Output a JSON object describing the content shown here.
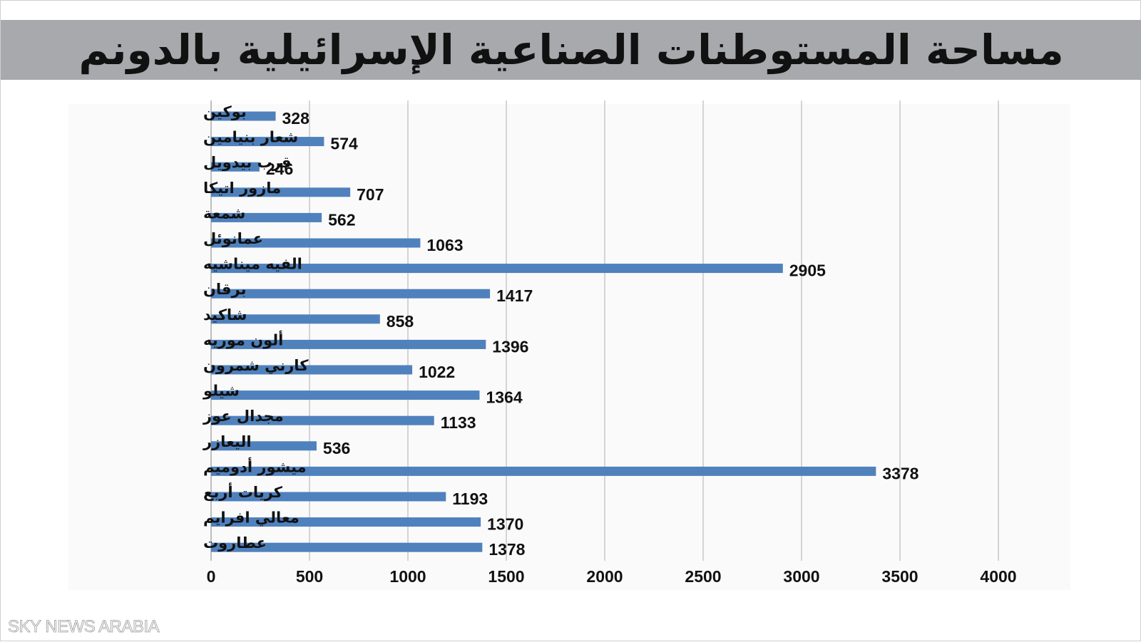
{
  "title": "مساحة المستوطنات الصناعية الإسرائيلية بالدونم",
  "watermark": "SKY NEWS ARABIA",
  "colors": {
    "bar": "#4f81bd",
    "title_bar": "#a7a9ac",
    "grid": "#c8c8c8",
    "text": "#111111"
  },
  "chart_data": {
    "type": "bar",
    "orientation": "horizontal",
    "title": "مساحة المستوطنات الصناعية الإسرائيلية بالدونم",
    "xlabel": "",
    "ylabel": "",
    "xlim": [
      0,
      4000
    ],
    "xticks": [
      0,
      500,
      1000,
      1500,
      2000,
      2500,
      3000,
      3500,
      4000
    ],
    "grid": "vertical",
    "legend": "none",
    "categories": [
      "بوكين",
      "شعار بنيامين",
      "قرب بيدويل",
      "مازور اتيكا",
      "شمعة",
      "عمانوئل",
      "الفيه ميناشيه",
      "برقان",
      "شاكيد",
      "ألون موريه",
      "كارني شمرون",
      "شيلو",
      "مجدال عوز",
      "اليعازر",
      "ميشور أدوميم",
      "كريات أربع",
      "معالي افرايم",
      "عطاروت"
    ],
    "values": [
      328,
      574,
      246,
      707,
      562,
      1063,
      2905,
      1417,
      858,
      1396,
      1022,
      1364,
      1133,
      536,
      3378,
      1193,
      1370,
      1378
    ]
  }
}
